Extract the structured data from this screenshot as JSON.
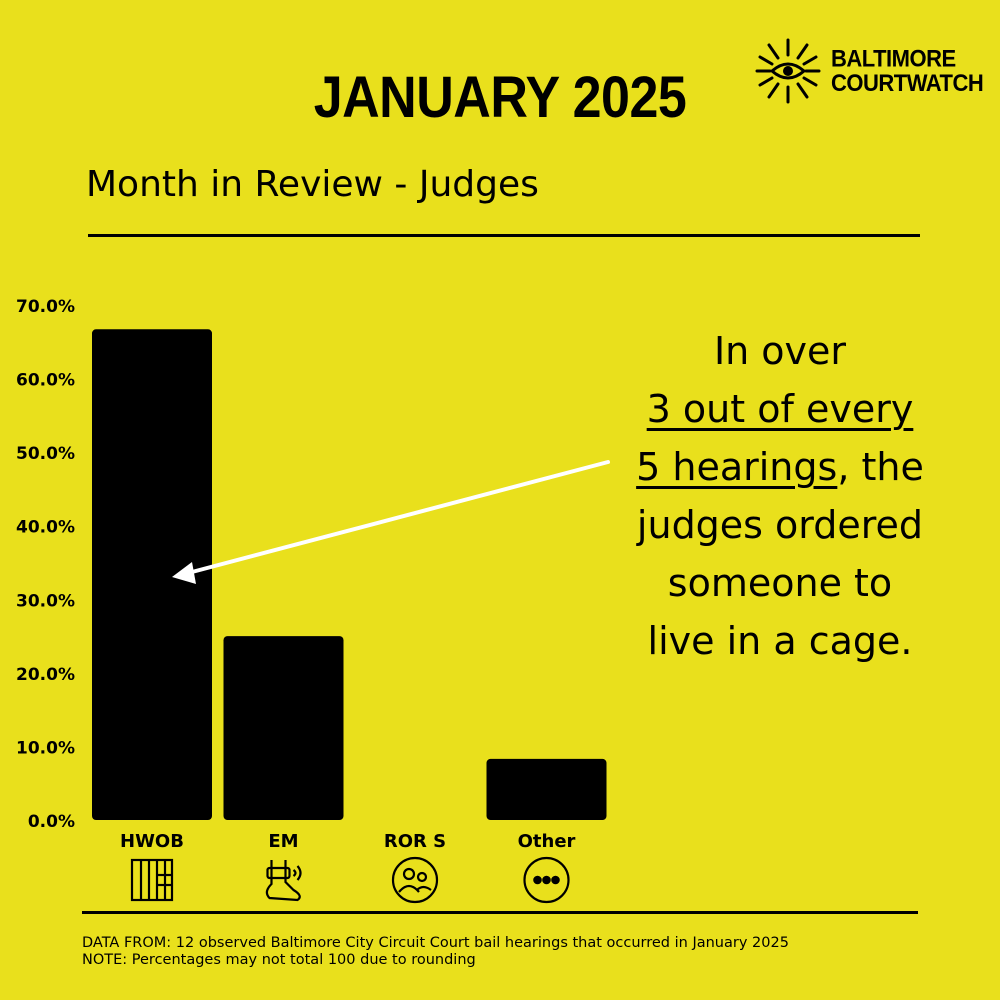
{
  "brand": {
    "line1": "BALTIMORE",
    "line2": "COURTWATCH",
    "logo_icon": "eye-sun-icon"
  },
  "header": {
    "title": "JANUARY 2025",
    "subtitle": "Month in Review - Judges"
  },
  "callout": {
    "line1": "In over",
    "line2": "3 out of every",
    "line3_underlined": "5 hearings",
    "line3_rest": ", the",
    "line4": "judges ordered",
    "line5": "someone to",
    "line6": "live in a cage."
  },
  "chart_data": {
    "type": "bar",
    "categories": [
      "HWOB",
      "EM",
      "ROR S",
      "Other"
    ],
    "values": [
      66.7,
      25.0,
      0.0,
      8.3
    ],
    "category_icons": [
      "jail-bars-icon",
      "ankle-monitor-icon",
      "people-circle-icon",
      "more-dots-icon"
    ],
    "ylim": [
      0,
      70
    ],
    "yticks": [
      "0.0%",
      "10.0%",
      "20.0%",
      "30.0%",
      "40.0%",
      "50.0%",
      "60.0%",
      "70.0%"
    ],
    "ytick_values": [
      0,
      10,
      20,
      30,
      40,
      50,
      60,
      70
    ],
    "bar_color": "#000000",
    "arrow_color": "#ffffff",
    "grid": false,
    "legend": "none"
  },
  "footer": {
    "line1": "DATA FROM: 12 observed Baltimore City Circuit Court bail hearings that occurred in January 2025",
    "line2": "NOTE: Percentages may not total 100 due to rounding"
  },
  "colors": {
    "background": "#e9e01c",
    "ink": "#000000"
  }
}
